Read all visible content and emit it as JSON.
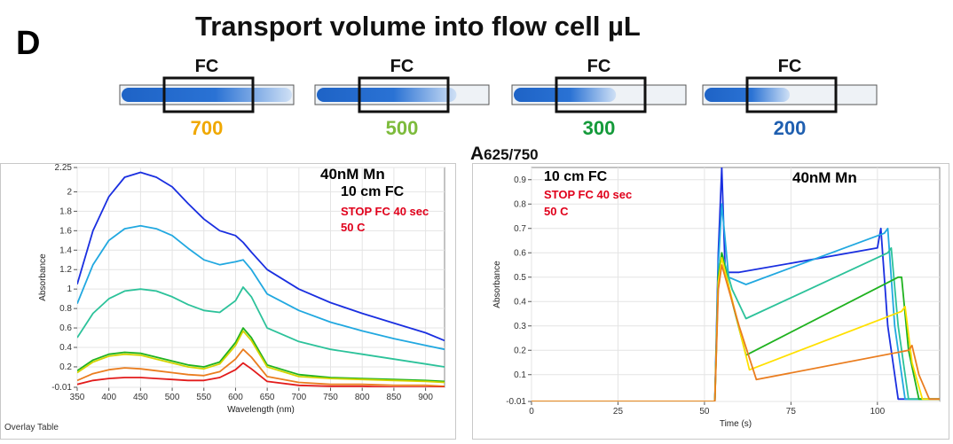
{
  "panel_letter": "D",
  "title": "Transport volume into flow cell µL",
  "tubes": [
    {
      "fc_label": "FC",
      "volume": "700",
      "color": "#f0a800",
      "fill": 1.0
    },
    {
      "fc_label": "FC",
      "volume": "500",
      "color": "#7dbb3c",
      "fill": 0.82
    },
    {
      "fc_label": "FC",
      "volume": "300",
      "color": "#149a3a",
      "fill": 0.6
    },
    {
      "fc_label": "FC",
      "volume": "200",
      "color": "#1f5fb0",
      "fill": 0.5
    }
  ],
  "center_label": {
    "main": "A",
    "sub": "625/750"
  },
  "left_plot": {
    "annotations": {
      "mn": "40nM Mn",
      "fc": "10 cm FC",
      "stop": "STOP FC 40 sec",
      "temp": "50 C"
    },
    "footer": "Overlay Table"
  },
  "right_plot": {
    "annotations": {
      "fc": "10 cm FC",
      "stop": "STOP FC 40 sec",
      "temp": "50 C",
      "mn": "40nM Mn"
    }
  },
  "colors": {
    "red_text": "#e0001b",
    "tube_blue": "#1e63c6"
  },
  "chart_data": [
    {
      "type": "line",
      "xlabel": "Wavelength (nm)",
      "ylabel": "Absorbance",
      "xlim": [
        350,
        930
      ],
      "ylim": [
        -0.01,
        2.25
      ],
      "xticks": [
        350,
        400,
        450,
        500,
        550,
        600,
        650,
        700,
        750,
        800,
        850,
        900
      ],
      "yticks": [
        -0.01,
        0.2,
        0.4,
        0.6,
        0.8,
        1,
        1.2,
        1.4,
        1.6,
        1.8,
        2,
        2.25
      ],
      "ytick_labels": [
        "-0.01",
        "0.2",
        "0.4",
        "0.6",
        "0.8",
        "1",
        "1.2",
        "1.4",
        "1.6",
        "1.8",
        "2",
        "2.25"
      ],
      "x": [
        350,
        375,
        400,
        425,
        450,
        475,
        500,
        525,
        550,
        575,
        600,
        612,
        625,
        650,
        700,
        750,
        800,
        850,
        900,
        930
      ],
      "series": [
        {
          "color": "#1a2fe0",
          "values": [
            1.05,
            1.6,
            1.95,
            2.15,
            2.2,
            2.15,
            2.05,
            1.88,
            1.72,
            1.6,
            1.55,
            1.48,
            1.38,
            1.2,
            1.0,
            0.86,
            0.75,
            0.65,
            0.55,
            0.47
          ]
        },
        {
          "color": "#21a8e0",
          "values": [
            0.85,
            1.25,
            1.5,
            1.62,
            1.65,
            1.62,
            1.55,
            1.42,
            1.3,
            1.25,
            1.28,
            1.3,
            1.2,
            0.95,
            0.78,
            0.66,
            0.57,
            0.49,
            0.42,
            0.38
          ]
        },
        {
          "color": "#2cc29a",
          "values": [
            0.5,
            0.75,
            0.9,
            0.98,
            1.0,
            0.98,
            0.92,
            0.84,
            0.78,
            0.76,
            0.88,
            1.02,
            0.92,
            0.6,
            0.46,
            0.38,
            0.33,
            0.28,
            0.23,
            0.2
          ]
        },
        {
          "color": "#1fb21f",
          "values": [
            0.16,
            0.27,
            0.33,
            0.35,
            0.34,
            0.3,
            0.26,
            0.22,
            0.2,
            0.25,
            0.45,
            0.6,
            0.5,
            0.22,
            0.12,
            0.09,
            0.08,
            0.07,
            0.06,
            0.05
          ]
        },
        {
          "color": "#d4d400",
          "values": [
            0.14,
            0.25,
            0.31,
            0.33,
            0.32,
            0.28,
            0.24,
            0.2,
            0.18,
            0.23,
            0.42,
            0.57,
            0.47,
            0.2,
            0.1,
            0.08,
            0.07,
            0.06,
            0.05,
            0.04
          ]
        },
        {
          "color": "#ea7d1f",
          "values": [
            0.06,
            0.13,
            0.17,
            0.19,
            0.18,
            0.16,
            0.14,
            0.12,
            0.11,
            0.15,
            0.28,
            0.38,
            0.3,
            0.1,
            0.04,
            0.02,
            0.02,
            0.01,
            0.01,
            0.0
          ]
        },
        {
          "color": "#e21b1b",
          "values": [
            0.02,
            0.06,
            0.08,
            0.09,
            0.09,
            0.08,
            0.07,
            0.06,
            0.06,
            0.09,
            0.17,
            0.24,
            0.18,
            0.05,
            0.01,
            0.0,
            0.0,
            -0.01,
            -0.01,
            -0.01
          ]
        }
      ]
    },
    {
      "type": "line",
      "xlabel": "Time (s)",
      "ylabel": "Absorbance",
      "xlim": [
        0,
        118
      ],
      "ylim": [
        -0.01,
        0.95
      ],
      "xticks": [
        0,
        25,
        50,
        75,
        100
      ],
      "yticks": [
        -0.01,
        0.1,
        0.2,
        0.3,
        0.4,
        0.5,
        0.6,
        0.7,
        0.8,
        0.9
      ],
      "ytick_labels": [
        "-0.01",
        "0.1",
        "0.2",
        "0.3",
        "0.4",
        "0.5",
        "0.6",
        "0.7",
        "0.8",
        "0.9"
      ],
      "series": [
        {
          "color": "#1a2fe0",
          "x": [
            0,
            53,
            54,
            55,
            56,
            60,
            100,
            101,
            103,
            106,
            118
          ],
          "values": [
            -0.01,
            -0.01,
            0.6,
            0.95,
            0.52,
            0.52,
            0.62,
            0.7,
            0.3,
            0.0,
            0.0
          ]
        },
        {
          "color": "#21a8e0",
          "x": [
            0,
            53,
            54,
            55,
            57,
            62,
            102,
            103,
            105,
            108,
            118
          ],
          "values": [
            -0.01,
            -0.01,
            0.55,
            0.8,
            0.5,
            0.47,
            0.68,
            0.7,
            0.3,
            0.0,
            0.0
          ]
        },
        {
          "color": "#2cc29a",
          "x": [
            0,
            53,
            54,
            55,
            58,
            62,
            103,
            104,
            106,
            109,
            118
          ],
          "values": [
            -0.01,
            -0.01,
            0.5,
            0.6,
            0.45,
            0.33,
            0.6,
            0.62,
            0.3,
            0.0,
            0.0
          ]
        },
        {
          "color": "#1fb21f",
          "x": [
            0,
            53,
            54,
            55,
            58,
            62,
            106,
            107,
            109,
            112,
            118
          ],
          "values": [
            -0.01,
            -0.01,
            0.5,
            0.6,
            0.4,
            0.18,
            0.5,
            0.5,
            0.2,
            0.0,
            0.0
          ]
        },
        {
          "color": "#ffe000",
          "x": [
            0,
            53,
            54,
            55,
            59,
            63,
            107,
            108,
            110,
            113,
            118
          ],
          "values": [
            -0.01,
            -0.01,
            0.48,
            0.58,
            0.35,
            0.12,
            0.36,
            0.38,
            0.15,
            0.0,
            0.0
          ]
        },
        {
          "color": "#ea7d1f",
          "x": [
            0,
            53,
            54,
            55,
            60,
            65,
            109,
            110,
            112,
            115,
            118
          ],
          "values": [
            -0.01,
            -0.01,
            0.45,
            0.55,
            0.3,
            0.08,
            0.2,
            0.22,
            0.1,
            0.0,
            0.0
          ]
        }
      ]
    }
  ]
}
